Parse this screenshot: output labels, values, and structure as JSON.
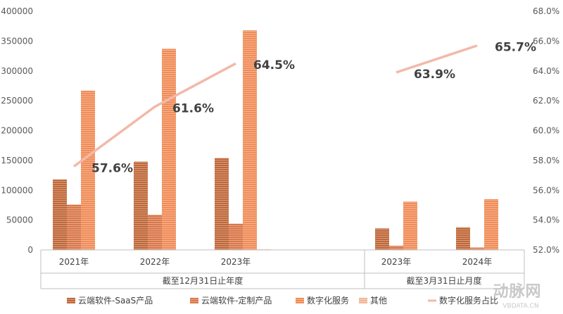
{
  "chart_data": {
    "type": "bar",
    "x_tick_labels": [
      "2021年",
      "2022年",
      "2023年",
      "2023年",
      "2024年"
    ],
    "group_labels": [
      "截至12月31日止年度",
      "截至3月31日止月度"
    ],
    "series": [
      {
        "name": "云端软件-SaaS产品",
        "color": "#c0683a",
        "values": [
          118000,
          148000,
          154000,
          36000,
          38000
        ]
      },
      {
        "name": "云端软件-定制产品",
        "color": "#d9784a",
        "values": [
          76000,
          59000,
          44000,
          7000,
          4000
        ]
      },
      {
        "name": "数字化服务",
        "color": "#f08c58",
        "values": [
          267000,
          337000,
          368000,
          81000,
          85000
        ]
      },
      {
        "name": "其他",
        "color": "#f2b79a",
        "values": [
          0,
          0,
          1000,
          0,
          0
        ]
      }
    ],
    "ratio_series": {
      "name": "数字化服务占比",
      "color": "#f2b9a8",
      "segments": [
        {
          "points": [
            [
              0,
              57.6
            ],
            [
              1,
              61.6
            ],
            [
              2,
              64.5
            ]
          ],
          "labels": [
            "57.6%",
            "61.6%",
            "64.5%"
          ]
        },
        {
          "points": [
            [
              3,
              63.9
            ],
            [
              4,
              65.7
            ]
          ],
          "labels": [
            "63.9%",
            "65.7%"
          ]
        }
      ]
    },
    "y_left": {
      "min": 0,
      "max": 400000,
      "step": 50000,
      "ticks": [
        "0",
        "50000",
        "100000",
        "150000",
        "200000",
        "250000",
        "300000",
        "350000",
        "400000"
      ]
    },
    "y_right": {
      "min": 52.0,
      "max": 68.0,
      "step": 2.0,
      "ticks": [
        "52.0%",
        "54.0%",
        "56.0%",
        "58.0%",
        "60.0%",
        "62.0%",
        "64.0%",
        "66.0%",
        "68.0%"
      ]
    },
    "grid": false,
    "legend_position": "bottom"
  },
  "watermark": {
    "brand": "动脉网",
    "url": "VBDATA.CN"
  }
}
